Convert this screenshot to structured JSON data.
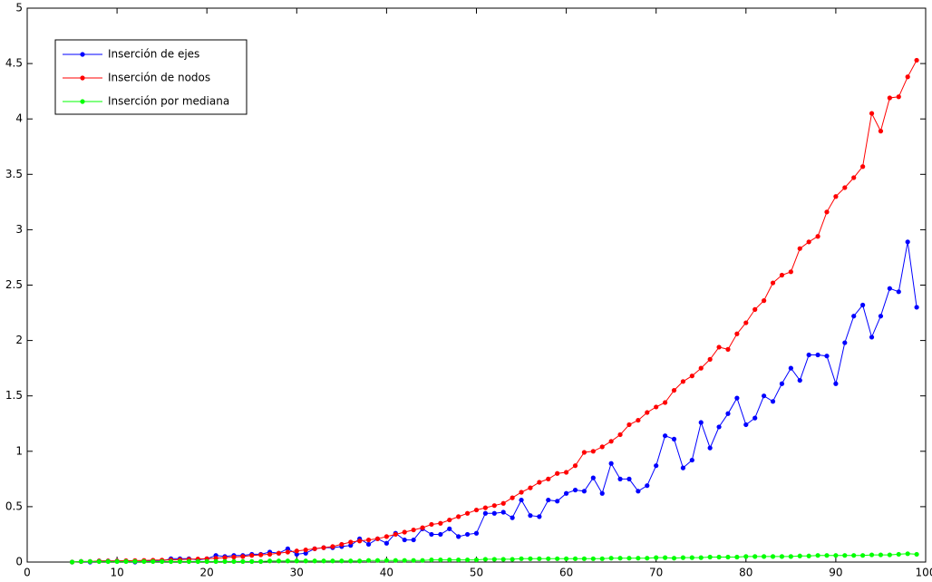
{
  "chart_data": {
    "type": "line",
    "x": [
      5,
      6,
      7,
      8,
      9,
      10,
      11,
      12,
      13,
      14,
      15,
      16,
      17,
      18,
      19,
      20,
      21,
      22,
      23,
      24,
      25,
      26,
      27,
      28,
      29,
      30,
      31,
      32,
      33,
      34,
      35,
      36,
      37,
      38,
      39,
      40,
      41,
      42,
      43,
      44,
      45,
      46,
      47,
      48,
      49,
      50,
      51,
      52,
      53,
      54,
      55,
      56,
      57,
      58,
      59,
      60,
      61,
      62,
      63,
      64,
      65,
      66,
      67,
      68,
      69,
      70,
      71,
      72,
      73,
      74,
      75,
      76,
      77,
      78,
      79,
      80,
      81,
      82,
      83,
      84,
      85,
      86,
      87,
      88,
      89,
      90,
      91,
      92,
      93,
      94,
      95,
      96,
      97,
      98,
      99
    ],
    "series": [
      {
        "name": "Inserción de ejes",
        "color": "#0000ff",
        "values": [
          0,
          0.005,
          0,
          0.01,
          0.01,
          0.01,
          0.01,
          0,
          0.01,
          0.01,
          0.01,
          0.03,
          0.03,
          0.03,
          0.02,
          0.03,
          0.06,
          0.05,
          0.06,
          0.06,
          0.07,
          0.07,
          0.09,
          0.08,
          0.12,
          0.07,
          0.08,
          0.12,
          0.13,
          0.13,
          0.14,
          0.15,
          0.21,
          0.16,
          0.21,
          0.17,
          0.26,
          0.2,
          0.2,
          0.3,
          0.25,
          0.25,
          0.3,
          0.23,
          0.25,
          0.26,
          0.44,
          0.44,
          0.45,
          0.4,
          0.56,
          0.42,
          0.41,
          0.56,
          0.55,
          0.62,
          0.65,
          0.64,
          0.76,
          0.62,
          0.89,
          0.75,
          0.75,
          0.64,
          0.69,
          0.87,
          1.14,
          1.11,
          0.85,
          0.92,
          1.26,
          1.03,
          1.22,
          1.34,
          1.48,
          1.24,
          1.3,
          1.5,
          1.45,
          1.61,
          1.75,
          1.64,
          1.87,
          1.87,
          1.86,
          1.61,
          1.98,
          2.22,
          2.32,
          2.03,
          2.22,
          2.47,
          2.44,
          2.89,
          2.3
        ]
      },
      {
        "name": "Inserción de nodos",
        "color": "#ff0000",
        "values": [
          0,
          0.005,
          0.005,
          0.01,
          0.01,
          0.01,
          0.012,
          0.013,
          0.015,
          0.017,
          0.018,
          0.02,
          0.022,
          0.025,
          0.028,
          0.03,
          0.035,
          0.04,
          0.045,
          0.05,
          0.06,
          0.065,
          0.07,
          0.08,
          0.09,
          0.1,
          0.11,
          0.12,
          0.13,
          0.14,
          0.16,
          0.18,
          0.19,
          0.2,
          0.21,
          0.23,
          0.25,
          0.27,
          0.29,
          0.31,
          0.34,
          0.35,
          0.38,
          0.41,
          0.44,
          0.47,
          0.49,
          0.51,
          0.53,
          0.58,
          0.63,
          0.67,
          0.72,
          0.75,
          0.8,
          0.81,
          0.87,
          0.99,
          1.0,
          1.04,
          1.09,
          1.15,
          1.24,
          1.28,
          1.35,
          1.4,
          1.44,
          1.55,
          1.63,
          1.68,
          1.75,
          1.83,
          1.94,
          1.92,
          2.06,
          2.16,
          2.28,
          2.36,
          2.52,
          2.59,
          2.62,
          2.83,
          2.89,
          2.94,
          3.16,
          3.3,
          3.38,
          3.47,
          3.57,
          4.05,
          3.89,
          4.19,
          4.2,
          4.38,
          4.53
        ]
      },
      {
        "name": "Inserción por mediana",
        "color": "#00ff00",
        "values": [
          0,
          0.005,
          0.005,
          0.005,
          0.005,
          0.005,
          0.005,
          0.005,
          0.005,
          0.005,
          0.005,
          0.005,
          0.005,
          0.005,
          0.005,
          0.005,
          0.005,
          0.005,
          0.005,
          0.005,
          0.005,
          0.005,
          0.01,
          0.01,
          0.01,
          0.01,
          0.01,
          0.01,
          0.01,
          0.01,
          0.01,
          0.01,
          0.01,
          0.015,
          0.015,
          0.015,
          0.015,
          0.015,
          0.015,
          0.015,
          0.02,
          0.02,
          0.02,
          0.02,
          0.02,
          0.02,
          0.025,
          0.025,
          0.025,
          0.025,
          0.03,
          0.03,
          0.03,
          0.03,
          0.03,
          0.03,
          0.03,
          0.03,
          0.03,
          0.03,
          0.035,
          0.035,
          0.035,
          0.035,
          0.035,
          0.04,
          0.04,
          0.035,
          0.04,
          0.04,
          0.04,
          0.045,
          0.045,
          0.045,
          0.045,
          0.05,
          0.05,
          0.05,
          0.05,
          0.05,
          0.05,
          0.055,
          0.055,
          0.06,
          0.06,
          0.06,
          0.06,
          0.06,
          0.06,
          0.065,
          0.065,
          0.065,
          0.07,
          0.075,
          0.07
        ]
      }
    ],
    "xlim": [
      0,
      100
    ],
    "xticks": [
      0,
      10,
      20,
      30,
      40,
      50,
      60,
      70,
      80,
      90,
      100
    ],
    "ylim": [
      0,
      5
    ],
    "yticks": [
      0,
      0.5,
      1,
      1.5,
      2,
      2.5,
      3,
      3.5,
      4,
      4.5,
      5
    ],
    "legend": "upper-left"
  }
}
